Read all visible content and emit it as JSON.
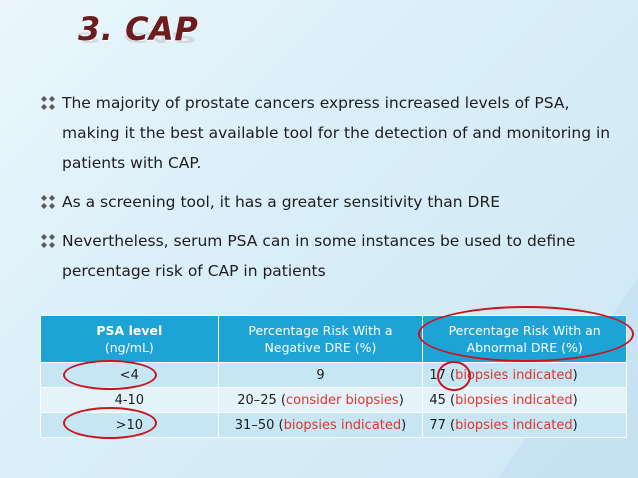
{
  "title": "3. CAP",
  "bullets": [
    "The majority of prostate cancers express increased levels of PSA, making it the best available tool for the detection of and monitoring in patients with CAP.",
    "As a screening tool, it has a greater sensitivity than DRE",
    "Nevertheless, serum PSA can in some instances be used to define percentage risk of CAP in patients"
  ],
  "table": {
    "headers": {
      "psa_label": "PSA level",
      "psa_unit": "(ng/mL)",
      "negative": "Percentage Risk With a Negative DRE (%)",
      "abnormal": "Percentage Risk With an Abnormal DRE (%)"
    },
    "rows": [
      {
        "psa": "<4",
        "neg_value": "9",
        "neg_note": "",
        "abn_value": "17",
        "abn_note": "biopsies indicated"
      },
      {
        "psa": "4-10",
        "neg_value": "20–25",
        "neg_note": "consider biopsies",
        "abn_value": "45",
        "abn_note": "biopsies indicated"
      },
      {
        "psa": ">10",
        "neg_value": "31–50",
        "neg_note": "biopsies indicated",
        "abn_value": "77",
        "abn_note": "biopsies indicated"
      }
    ]
  },
  "colors": {
    "title": "#6b1d1d",
    "header_bg": "#1ea3d6",
    "highlight": "#e0342a",
    "circle": "#c8161d"
  },
  "icons": {
    "bullet": "diamond-bullet-icon"
  }
}
